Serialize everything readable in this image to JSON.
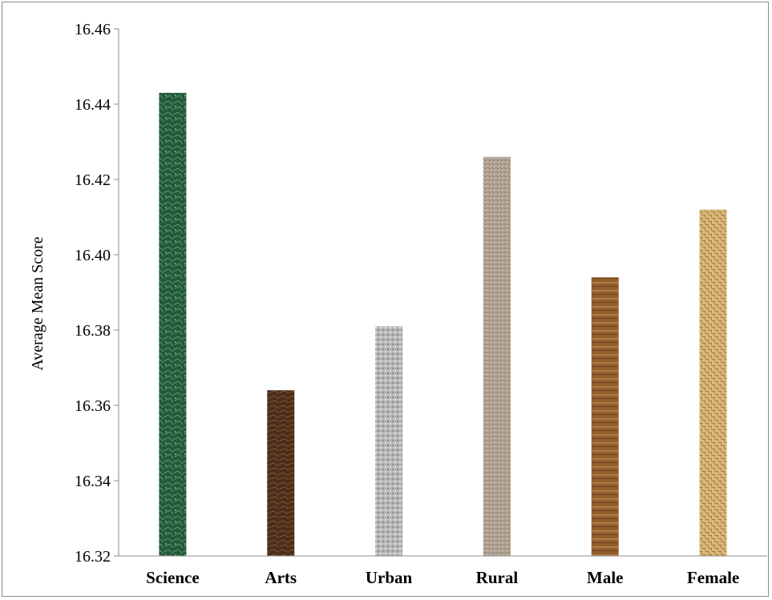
{
  "chart_data": {
    "type": "bar",
    "title": "",
    "xlabel": "",
    "ylabel": "Average Mean Score",
    "ylim": [
      16.32,
      16.46
    ],
    "yticks": [
      "16.32",
      "16.34",
      "16.36",
      "16.38",
      "16.40",
      "16.42",
      "16.44",
      "16.46"
    ],
    "categories": [
      "Science",
      "Arts",
      "Urban",
      "Rural",
      "Male",
      "Female"
    ],
    "values": [
      16.443,
      16.364,
      16.381,
      16.426,
      16.394,
      16.412
    ],
    "grid": false,
    "legend": "none",
    "bar_colors": [
      "#2f6b45",
      "#5a3a22",
      "#b9b9b9",
      "#b8a89a",
      "#8a5a2b",
      "#d8b878"
    ]
  }
}
